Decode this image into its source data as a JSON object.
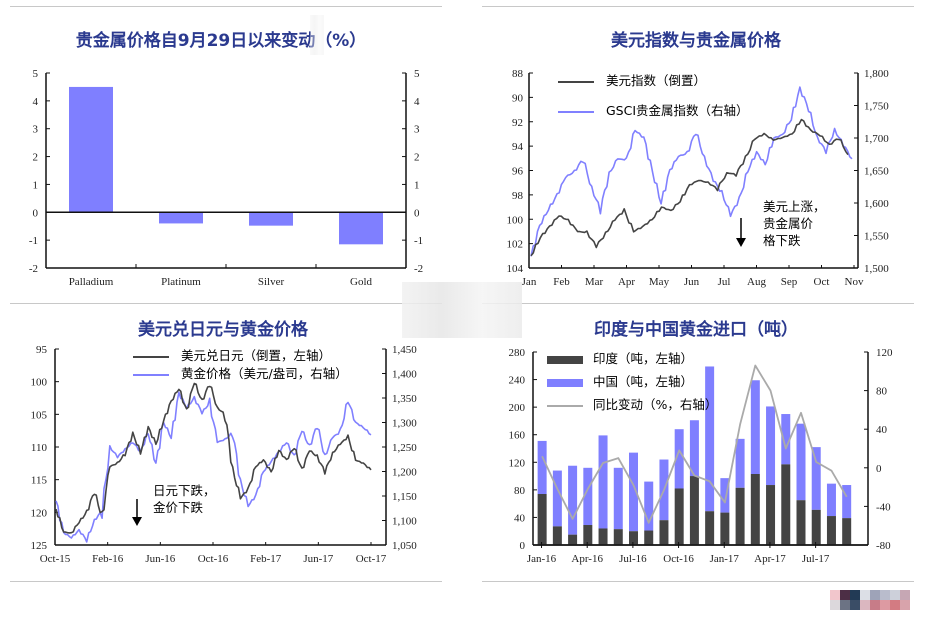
{
  "charts": {
    "c1": {
      "title": "贵金属价格自9月29日以来变动（%）"
    },
    "c2": {
      "title": "美元指数与贵金属价格",
      "legend": [
        "美元指数（倒置）",
        "GSCI贵金属指数（右轴）"
      ],
      "annotation": [
        "美元上涨，",
        "贵金属价",
        "格下跌"
      ]
    },
    "c3": {
      "title": "美元兑日元与黄金价格",
      "legend": [
        "美元兑日元（倒置，左轴）",
        "黄金价格（美元/盎司，右轴）"
      ],
      "annotation": [
        "日元下跌，",
        "金价下跌"
      ]
    },
    "c4": {
      "title": "印度与中国黄金进口（吨）",
      "legend": [
        "印度（吨，左轴）",
        "中国（吨，左轴）",
        "同比变动（%，右轴）"
      ]
    }
  },
  "colors": {
    "title": "#2b3a8f",
    "blue_bar": "#7f7fff",
    "blue_line": "#8080ff",
    "dark": "#444444",
    "gray_line": "#aaaaaa",
    "axis": "#111111"
  },
  "chart_data": [
    {
      "type": "bar",
      "title": "贵金属价格自9月29日以来变动（%）",
      "categories": [
        "Palladium",
        "Platinum",
        "Silver",
        "Gold"
      ],
      "values": [
        4.5,
        -0.4,
        -0.48,
        -1.15
      ],
      "ylim": [
        -2,
        5
      ],
      "yticks": [
        5,
        4,
        3,
        2,
        1,
        0,
        -1,
        -2
      ],
      "right_axis_mirror": true,
      "xlabel": "",
      "ylabel": ""
    },
    {
      "type": "line",
      "title": "美元指数与贵金属价格",
      "x": [
        "Jan",
        "Feb",
        "Mar",
        "Apr",
        "May",
        "Jun",
        "Jul",
        "Aug",
        "Sep",
        "Oct",
        "Nov"
      ],
      "series": [
        {
          "name": "美元指数（倒置）",
          "axis": "left",
          "inverted": true,
          "values": [
            103.0,
            101.5,
            100.6,
            99.7,
            100.1,
            101.0,
            101.1,
            102.2,
            101.2,
            100.0,
            99.3,
            101.0,
            100.6,
            100.0,
            99.0,
            99.3,
            98.5,
            97.2,
            96.8,
            97.0,
            97.5,
            96.2,
            96.3,
            95.0,
            93.4,
            93.0,
            93.5,
            93.3,
            93.0,
            91.8,
            92.7,
            93.1,
            93.9,
            93.3,
            94.7
          ]
        },
        {
          "name": "GSCI贵金属指数（右轴）",
          "axis": "right",
          "values": [
            1518,
            1565,
            1590,
            1612,
            1640,
            1648,
            1668,
            1622,
            1590,
            1645,
            1668,
            1666,
            1712,
            1700,
            1648,
            1600,
            1650,
            1672,
            1676,
            1710,
            1668,
            1636,
            1615,
            1582,
            1605,
            1650,
            1678,
            1660,
            1700,
            1705,
            1730,
            1776,
            1745,
            1700,
            1680,
            1712,
            1690,
            1668
          ]
        }
      ],
      "left_ylim": [
        88,
        104
      ],
      "right_ylim": [
        1500,
        1800
      ],
      "left_ticks": [
        88,
        90,
        92,
        94,
        96,
        98,
        100,
        102,
        104
      ],
      "right_ticks": [
        "1,800",
        "1,750",
        "1,700",
        "1,650",
        "1,600",
        "1,550",
        "1,500"
      ],
      "legend_position": "top-left"
    },
    {
      "type": "line",
      "title": "美元兑日元与黄金价格",
      "x": [
        "Oct-15",
        "Feb-16",
        "Jun-16",
        "Oct-16",
        "Feb-17",
        "Jun-17",
        "Oct-17"
      ],
      "series": [
        {
          "name": "美元兑日元（倒置，左轴）",
          "axis": "left",
          "inverted": true,
          "values": [
            119.5,
            123.0,
            123.2,
            121.5,
            120.0,
            116.8,
            120.8,
            113.0,
            112.5,
            111.0,
            108.0,
            110.8,
            107.0,
            109.5,
            106.0,
            103.0,
            101.0,
            104.5,
            100.0,
            103.0,
            100.3,
            104.0,
            105.0,
            113.5,
            117.8,
            116.5,
            113.0,
            112.0,
            113.8,
            110.5,
            112.0,
            110.0,
            113.5,
            110.5,
            111.5,
            113.8,
            111.0,
            109.5,
            108.5,
            112.0,
            112.5,
            113.5
          ]
        },
        {
          "name": "黄金价格（美元/盎司，右轴）",
          "axis": "right",
          "values": [
            1140,
            1075,
            1065,
            1080,
            1060,
            1100,
            1120,
            1250,
            1230,
            1245,
            1260,
            1240,
            1280,
            1215,
            1300,
            1270,
            1360,
            1330,
            1350,
            1320,
            1340,
            1260,
            1265,
            1280,
            1180,
            1130,
            1150,
            1200,
            1220,
            1240,
            1260,
            1230,
            1285,
            1250,
            1295,
            1230,
            1270,
            1280,
            1345,
            1300,
            1290,
            1275
          ]
        }
      ],
      "left_ylim": [
        95,
        125
      ],
      "right_ylim": [
        1050,
        1450
      ],
      "left_ticks": [
        95,
        100,
        105,
        110,
        115,
        120,
        125
      ],
      "right_ticks": [
        "1,450",
        "1,400",
        "1,350",
        "1,300",
        "1,250",
        "1,200",
        "1,150",
        "1,100",
        "1,050"
      ],
      "legend_position": "top"
    },
    {
      "type": "bar",
      "stacked": true,
      "title": "印度与中国黄金进口（吨）",
      "categories": [
        "Jan-16",
        "Feb-16",
        "Mar-16",
        "Apr-16",
        "May-16",
        "Jun-16",
        "Jul-16",
        "Aug-16",
        "Sep-16",
        "Oct-16",
        "Nov-16",
        "Dec-16",
        "Jan-17",
        "Feb-17",
        "Mar-17",
        "Apr-17",
        "May-17",
        "Jun-17",
        "Jul-17",
        "Aug-17",
        "Sep-17"
      ],
      "xtick_labels": [
        "Jan-16",
        "Apr-16",
        "Jul-16",
        "Oct-16",
        "Jan-17",
        "Apr-17",
        "Jul-17"
      ],
      "series": [
        {
          "name": "印度（吨，左轴）",
          "type": "bar",
          "values": [
            74,
            27,
            15,
            29,
            24,
            23,
            20,
            21,
            36,
            82,
            100,
            49,
            47,
            83,
            103,
            87,
            117,
            65,
            51,
            42,
            39
          ]
        },
        {
          "name": "中国（吨，左轴）",
          "type": "bar",
          "values": [
            77,
            81,
            100,
            83,
            135,
            89,
            114,
            71,
            88,
            86,
            81,
            210,
            50,
            71,
            136,
            114,
            73,
            111,
            91,
            47,
            48
          ]
        },
        {
          "name": "同比变动（%，右轴）",
          "type": "line",
          "axis": "right",
          "values": [
            12,
            -22,
            -53,
            -22,
            5,
            10,
            -18,
            -57,
            -23,
            18,
            -8,
            -14,
            -36,
            45,
            106,
            80,
            20,
            57,
            6,
            -3,
            -30
          ]
        }
      ],
      "left_ylim": [
        0,
        280
      ],
      "right_ylim": [
        -80,
        120
      ],
      "left_ticks": [
        280,
        240,
        200,
        160,
        120,
        80,
        40,
        0
      ],
      "right_ticks": [
        120,
        80,
        40,
        0,
        -40,
        -80
      ],
      "legend_position": "top-left"
    }
  ]
}
